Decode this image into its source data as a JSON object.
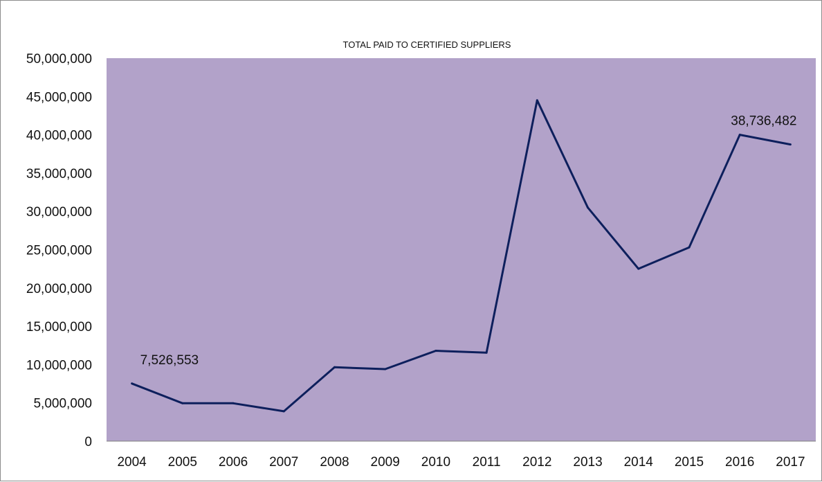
{
  "chart_data": {
    "type": "line",
    "title": "TOTAL PAID TO CERTIFIED SUPPLIERS",
    "xlabel": "",
    "ylabel": "",
    "categories": [
      "2004",
      "2005",
      "2006",
      "2007",
      "2008",
      "2009",
      "2010",
      "2011",
      "2012",
      "2013",
      "2014",
      "2015",
      "2016",
      "2017"
    ],
    "series": [
      {
        "values": [
          7526553,
          4950000,
          4950000,
          3900000,
          9650000,
          9400000,
          11800000,
          11550000,
          44500000,
          30500000,
          22500000,
          25300000,
          40000000,
          38736482
        ],
        "color": "#0d1f5c"
      }
    ],
    "data_labels": [
      {
        "index": 0,
        "text": "7,526,553"
      },
      {
        "index": 13,
        "text": "38,736,482"
      }
    ],
    "y_ticks": [
      "0",
      "5,000,000",
      "10,000,000",
      "15,000,000",
      "20,000,000",
      "25,000,000",
      "30,000,000",
      "35,000,000",
      "40,000,000",
      "45,000,000",
      "50,000,000"
    ],
    "ylim": [
      0,
      50000000
    ],
    "grid": false,
    "legend": "none",
    "plot_background": "#b2a2c9"
  }
}
